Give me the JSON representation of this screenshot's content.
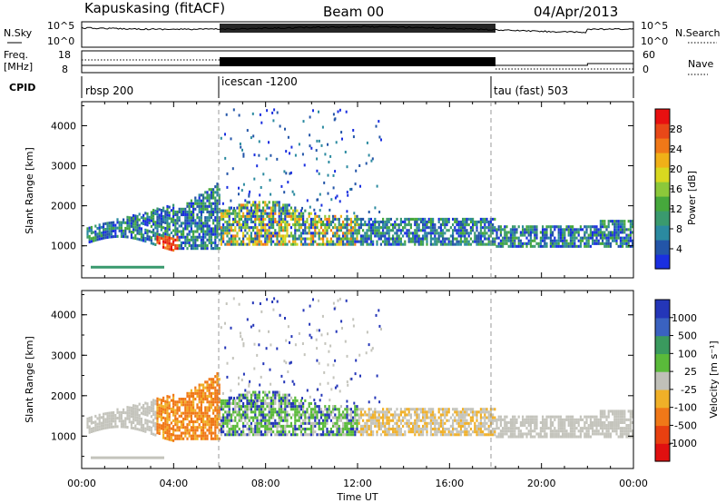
{
  "header": {
    "title": "Kapuskasing (fitACF)",
    "beam": "Beam 00",
    "date": "04/Apr/2013"
  },
  "noise_panel": {
    "left_label": "N.Sky",
    "right_label": "N.Search",
    "ticks_left": [
      "10^5",
      "10^0"
    ],
    "ticks_right": [
      "10^5",
      "10^0"
    ]
  },
  "freq_panel": {
    "left_label_1": "Freq.",
    "left_label_2": "[MHz]",
    "right_label": "Nave",
    "ticks_left": [
      "18",
      "8"
    ],
    "ticks_right": [
      "60",
      "0"
    ]
  },
  "cpid_panel": {
    "label": "CPID",
    "segments": [
      {
        "name": "rbsp 200",
        "start": 0,
        "end": 6
      },
      {
        "name": "icescan -1200",
        "start": 6,
        "end": 18
      },
      {
        "name": "tau (fast) 503",
        "start": 18,
        "end": 24
      }
    ]
  },
  "chart_data": [
    {
      "type": "heatmap",
      "name": "power",
      "xlabel": "",
      "ylabel": "Slant Range [km]",
      "xlim": [
        0,
        24
      ],
      "ylim": [
        200,
        4600
      ],
      "yticks": [
        "1000",
        "2000",
        "3000",
        "4000"
      ],
      "colorbar": {
        "label": "Power [dB]",
        "ticks": [
          "4",
          "8",
          "12",
          "16",
          "20",
          "24",
          "28"
        ],
        "colors": [
          "#1a2fe0",
          "#2355a8",
          "#2b8aa0",
          "#3a9a6e",
          "#46a83c",
          "#8cc83a",
          "#d8d820",
          "#f0b018",
          "#f07818",
          "#e84818",
          "#e81010"
        ]
      }
    },
    {
      "type": "heatmap",
      "name": "velocity",
      "xlabel": "Time UT",
      "ylabel": "Slant Range [km]",
      "xlim": [
        0,
        24
      ],
      "ylim": [
        200,
        4600
      ],
      "xticks": [
        "00:00",
        "04:00",
        "08:00",
        "12:00",
        "16:00",
        "20:00",
        "00:00"
      ],
      "yticks": [
        "1000",
        "2000",
        "3000",
        "4000"
      ],
      "colorbar": {
        "label": "Velocity [m s⁻¹]",
        "ticks": [
          "1000",
          "500",
          "100",
          "25",
          "-25",
          "-100",
          "-500",
          "-1000"
        ],
        "colors": [
          "#2436b8",
          "#3a62c0",
          "#3a9a5e",
          "#5aba3a",
          "#c0c0b8",
          "#f0b028",
          "#f07818",
          "#e84010",
          "#e01010"
        ]
      }
    }
  ]
}
